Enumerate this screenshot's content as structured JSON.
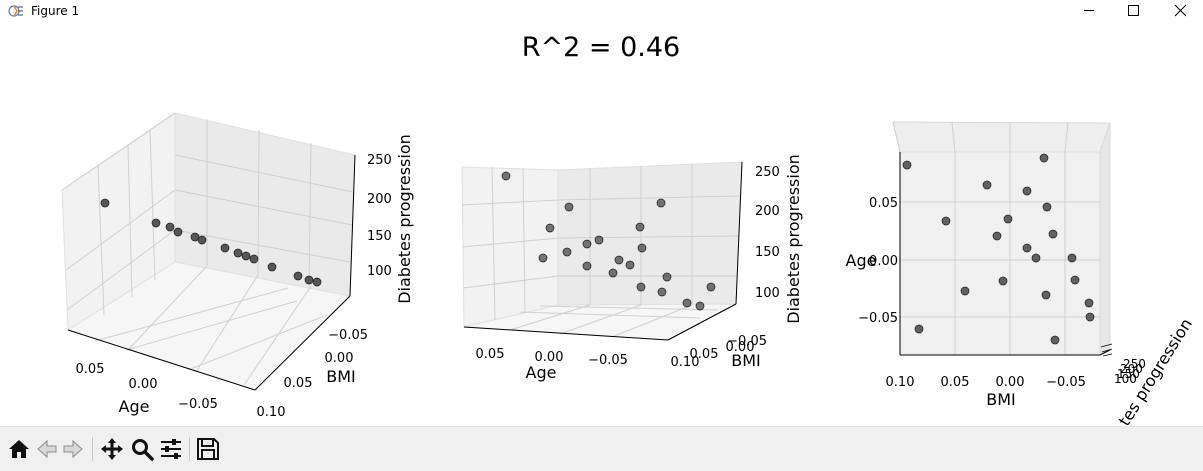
{
  "window": {
    "title": "Figure 1",
    "icon": "matplotlib-figure-icon",
    "controls": [
      "minimize-icon",
      "maximize-icon",
      "close-icon"
    ]
  },
  "figure": {
    "suptitle": "R^2 = 0.46"
  },
  "subplots": [
    {
      "xlabel": "Age",
      "ylabel": "BMI",
      "zlabel": "Diabetes progression",
      "x_ticks": [
        "0.05",
        "0.00",
        "−0.05"
      ],
      "y_ticks": [
        "−0.05",
        "0.00",
        "0.05",
        "0.10"
      ],
      "z_ticks": [
        "100",
        "150",
        "200",
        "250"
      ]
    },
    {
      "xlabel": "Age",
      "ylabel": "BMI",
      "zlabel": "Diabetes progression",
      "x_ticks": [
        "0.05",
        "0.00",
        "−0.05"
      ],
      "y_ticks": [
        "−0.05",
        "0.00",
        "0.05",
        "0.10"
      ],
      "z_ticks": [
        "100",
        "150",
        "200",
        "250"
      ]
    },
    {
      "xlabel": "BMI",
      "ylabel": "Age",
      "zlabel": "Diabetes progression",
      "x_ticks": [
        "0.10",
        "0.05",
        "0.00",
        "−0.05"
      ],
      "y_ticks": [
        "0.05",
        "0.00",
        "−0.05"
      ],
      "z_ticks": [
        "100",
        "150",
        "200",
        "250"
      ],
      "zlabel_visible": "tes progression"
    }
  ],
  "chart_data": {
    "type": "scatter",
    "title": "R^2 = 0.46",
    "axes": [
      "Age",
      "BMI",
      "Diabetes progression"
    ],
    "marker_color": "#3d3d3d",
    "grid": true,
    "panes": 3,
    "points_projected_panel3": [
      {
        "bmi": 0.09,
        "age": 0.08
      },
      {
        "bmi": -0.03,
        "age": 0.08
      },
      {
        "bmi": 0.02,
        "age": 0.065
      },
      {
        "bmi": 0.0,
        "age": 0.062
      },
      {
        "bmi": -0.035,
        "age": 0.045
      },
      {
        "bmi": 0.06,
        "age": 0.035
      },
      {
        "bmi": 0.0,
        "age": 0.035
      },
      {
        "bmi": 0.01,
        "age": 0.022
      },
      {
        "bmi": -0.04,
        "age": 0.02
      },
      {
        "bmi": 0.0,
        "age": 0.01
      },
      {
        "bmi": -0.025,
        "age": 0.008
      },
      {
        "bmi": -0.06,
        "age": 0.002
      },
      {
        "bmi": -0.065,
        "age": -0.015
      },
      {
        "bmi": -0.005,
        "age": -0.018
      },
      {
        "bmi": 0.04,
        "age": -0.025
      },
      {
        "bmi": -0.035,
        "age": -0.028
      },
      {
        "bmi": -0.075,
        "age": -0.04
      },
      {
        "bmi": -0.075,
        "age": -0.05
      },
      {
        "bmi": 0.08,
        "age": -0.058
      },
      {
        "bmi": -0.045,
        "age": -0.068
      }
    ]
  },
  "toolbar": {
    "buttons": [
      "home-icon",
      "back-icon",
      "forward-icon",
      "pan-icon",
      "zoom-icon",
      "configure-subplots-icon",
      "save-icon"
    ]
  }
}
